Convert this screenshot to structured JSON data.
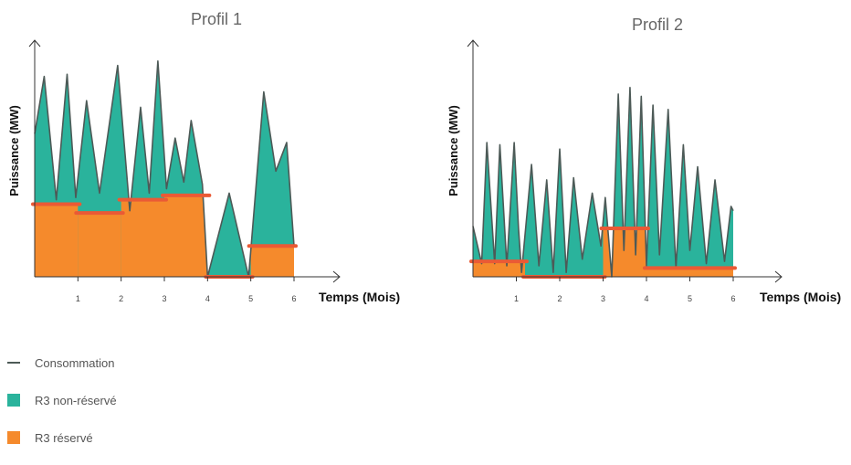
{
  "colors": {
    "consommation": "#4d5a57",
    "non_reserve": "#2ab39c",
    "reserve": "#f58a2c",
    "reserve_line": "#ea5a35",
    "axis": "#333333"
  },
  "legend": {
    "consommation": "Consommation",
    "non_reserve": "R3 non-réservé",
    "reserve": "R3 réservé"
  },
  "chart_data": [
    {
      "type": "area",
      "title": "Profil 1",
      "xlabel": "Temps (Mois)",
      "ylabel": "Puissance (MW)",
      "x_ticks": [
        "1",
        "2",
        "3",
        "4",
        "5",
        "6"
      ],
      "xlim": [
        0,
        6
      ],
      "ylim": [
        0,
        100
      ],
      "consommation": {
        "x": [
          0,
          0.22,
          0.5,
          0.75,
          0.95,
          1.2,
          1.5,
          1.92,
          2.2,
          2.45,
          2.65,
          2.85,
          3.05,
          3.25,
          3.45,
          3.62,
          3.88,
          4.0,
          4.5,
          4.95,
          5.3,
          5.58,
          5.83,
          6.0
        ],
        "y": [
          65,
          91,
          35,
          92,
          36,
          80,
          38,
          96,
          30,
          77,
          38,
          98,
          40,
          63,
          43,
          71,
          42,
          0,
          38,
          0,
          84,
          48,
          61,
          14
        ]
      },
      "reserve_segments": [
        {
          "x0": 0,
          "x1": 1,
          "y": 33
        },
        {
          "x0": 1,
          "x1": 2,
          "y": 29
        },
        {
          "x0": 2,
          "x1": 3,
          "y": 35
        },
        {
          "x0": 3,
          "x1": 4,
          "y": 37
        },
        {
          "x0": 4,
          "x1": 5,
          "y": 0
        },
        {
          "x0": 5,
          "x1": 6,
          "y": 14
        }
      ]
    },
    {
      "type": "area",
      "title": "Profil 2",
      "xlabel": "Temps (Mois)",
      "ylabel": "Puissance (MW)",
      "x_ticks": [
        "1",
        "2",
        "3",
        "4",
        "5",
        "6"
      ],
      "xlim": [
        0,
        6
      ],
      "ylim": [
        0,
        100
      ],
      "consommation": {
        "x": [
          0,
          0.2,
          0.32,
          0.5,
          0.62,
          0.78,
          0.95,
          1.05,
          1.12,
          1.35,
          1.52,
          1.7,
          1.85,
          2.0,
          2.15,
          2.32,
          2.52,
          2.75,
          2.95,
          3.05,
          3.2,
          3.35,
          3.48,
          3.62,
          3.75,
          3.88,
          4.0,
          4.15,
          4.3,
          4.5,
          4.68,
          4.85,
          5.0,
          5.18,
          5.38,
          5.58,
          5.8,
          5.95,
          6.0
        ],
        "y": [
          23,
          6,
          61,
          6,
          60,
          5,
          61,
          22,
          2,
          51,
          5,
          44,
          2,
          58,
          2,
          45,
          8,
          38,
          14,
          36,
          0,
          83,
          12,
          86,
          10,
          82,
          5,
          78,
          10,
          76,
          4,
          60,
          12,
          50,
          6,
          44,
          7,
          32,
          30
        ]
      },
      "reserve_segments": [
        {
          "x0": 0,
          "x1": 1.2,
          "y": 7
        },
        {
          "x0": 1.2,
          "x1": 3.0,
          "y": 0
        },
        {
          "x0": 3.0,
          "x1": 4.0,
          "y": 22
        },
        {
          "x0": 4.0,
          "x1": 6.0,
          "y": 4
        }
      ]
    }
  ]
}
